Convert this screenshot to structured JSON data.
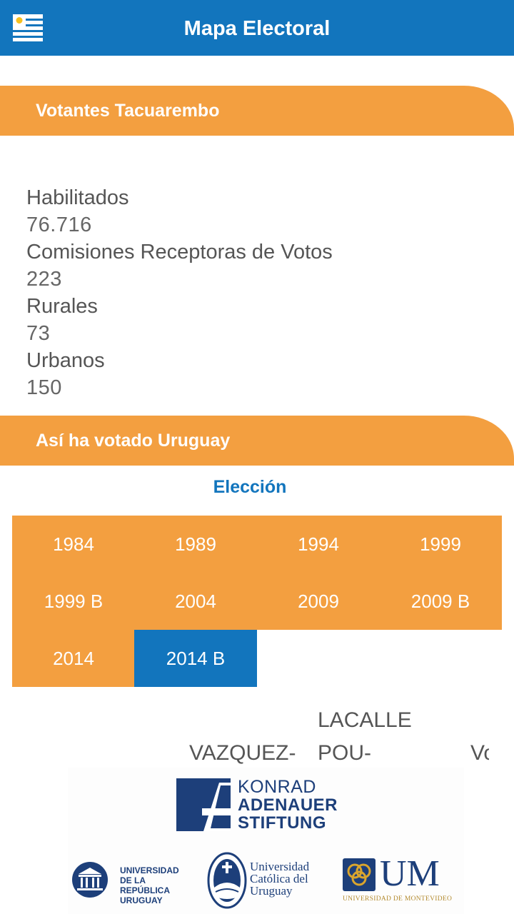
{
  "header": {
    "title": "Mapa Electoral",
    "menu_icon": "uruguay-flag-menu-icon"
  },
  "votantes": {
    "title": "Votantes Tacuarembo",
    "stats": [
      {
        "label": "Habilitados",
        "value": "76.716"
      },
      {
        "label": "Comisiones Receptoras de Votos",
        "value": "223"
      },
      {
        "label": "Rurales",
        "value": "73"
      },
      {
        "label": "Urbanos",
        "value": "150"
      }
    ]
  },
  "uruguay": {
    "title": "Así ha votado Uruguay",
    "eleccion_label": "Elección",
    "years": [
      "1984",
      "1989",
      "1994",
      "1999",
      "1999 B",
      "2004",
      "2009",
      "2009 B",
      "2014",
      "2014 B"
    ],
    "selected_year": "2014 B"
  },
  "candidates": {
    "c1": "VAZQUEZ-",
    "c2_line1": "LACALLE",
    "c2_line2": "POU-",
    "c3": "Vo"
  },
  "footer_logos": {
    "kas_line1": "KONRAD",
    "kas_line2": "ADENAUER",
    "kas_line3": "STIFTUNG",
    "udelar_line1": "UNIVERSIDAD",
    "udelar_line2": "DE LA REPÚBLICA",
    "udelar_line3": "URUGUAY",
    "ucu_line1": "Universidad",
    "ucu_line2": "Católica del",
    "ucu_line3": "Uruguay",
    "um_letters": "UM",
    "um_sub": "UNIVERSIDAD DE MONTEVIDEO",
    "colors": {
      "blue": "#1275bd",
      "orange": "#f39f40",
      "navy": "#1d3f7a",
      "gold": "#b38a2e"
    }
  }
}
